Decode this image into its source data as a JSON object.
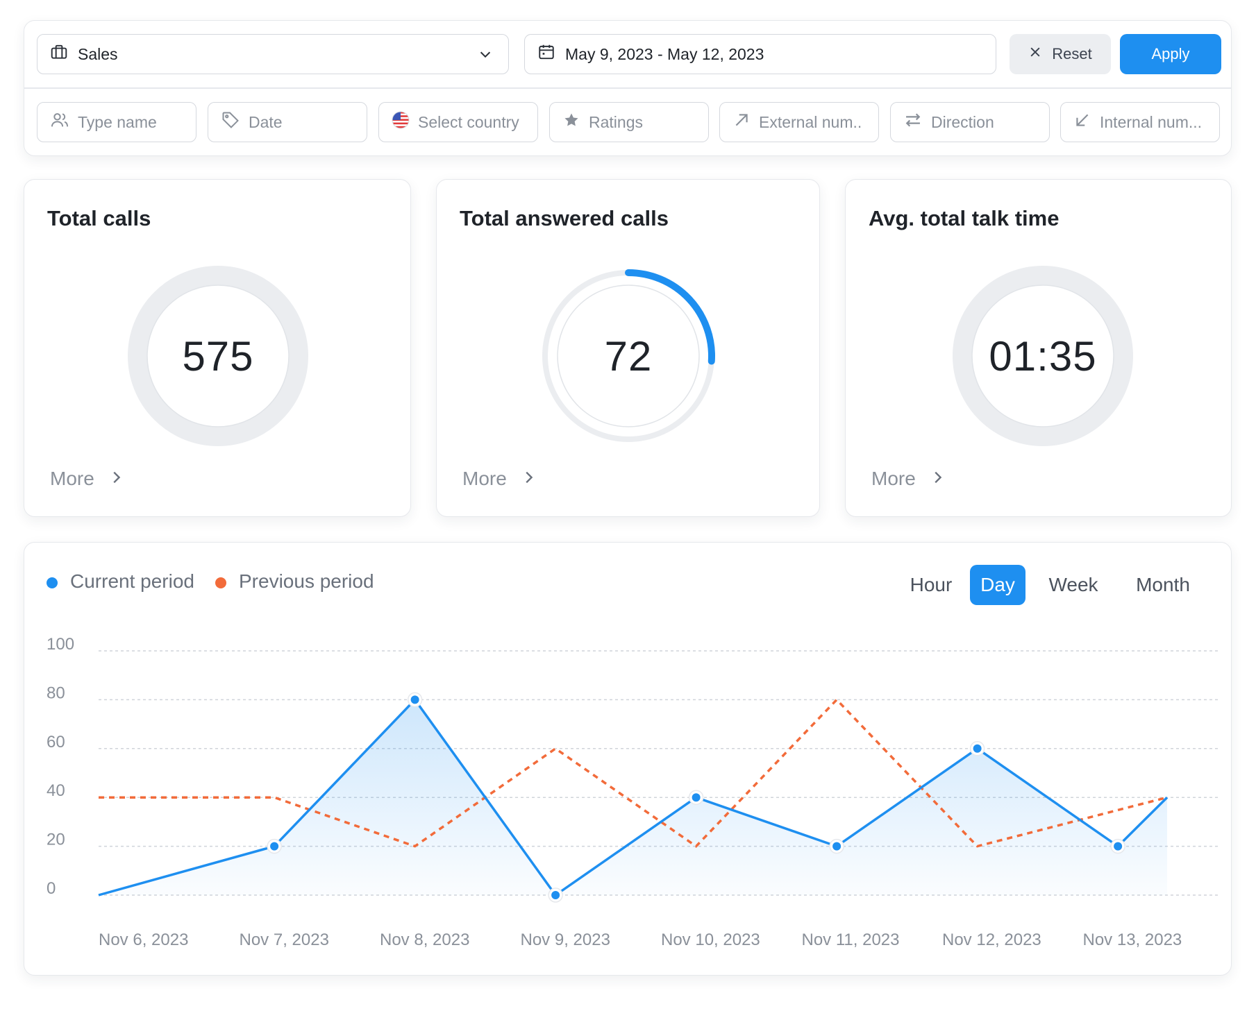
{
  "filters": {
    "department": {
      "value": "Sales",
      "icon": "briefcase-icon"
    },
    "date_range": {
      "value": "May 9, 2023 - May 12, 2023",
      "icon": "calendar-icon"
    },
    "reset_label": "Reset",
    "apply_label": "Apply",
    "chips": [
      {
        "placeholder": "Type name",
        "icon": "users-icon"
      },
      {
        "placeholder": "Date",
        "icon": "tag-icon"
      },
      {
        "placeholder": "Select country",
        "icon": "us-flag-icon"
      },
      {
        "placeholder": "Ratings",
        "icon": "star-icon"
      },
      {
        "placeholder": "External num..",
        "icon": "arrow-up-right-icon"
      },
      {
        "placeholder": "Direction",
        "icon": "swap-arrows-icon"
      },
      {
        "placeholder": "Internal num...",
        "icon": "arrow-down-left-icon"
      }
    ]
  },
  "kpis": [
    {
      "title": "Total calls",
      "value": "575",
      "progress": 0,
      "more_label": "More"
    },
    {
      "title": "Total answered calls",
      "value": "72",
      "progress": 0.26,
      "more_label": "More"
    },
    {
      "title": "Avg. total talk time",
      "value": "01:35",
      "progress": 0,
      "more_label": "More"
    }
  ],
  "chart_controls": {
    "legend": [
      {
        "label": "Current period",
        "color": "#1e8ff0"
      },
      {
        "label": "Previous period",
        "color": "#f26b3a"
      }
    ],
    "granularity": [
      "Hour",
      "Day",
      "Week",
      "Month"
    ],
    "active_granularity": "Day"
  },
  "chart_data": {
    "type": "line",
    "x": [
      "Nov 6, 2023",
      "",
      "Nov 7, 2023",
      "",
      "Nov 8, 2023",
      "",
      "Nov 9, 2023",
      "",
      "Nov 10, 2023",
      "",
      "Nov 11, 2023",
      "",
      "Nov 12, 2023",
      "",
      "Nov 13, 2023",
      ""
    ],
    "tick_labels": [
      "Nov 6, 2023",
      "Nov 7, 2023",
      "Nov 8, 2023",
      "Nov 9, 2023",
      "Nov 10, 2023",
      "Nov 11, 2023",
      "Nov 12, 2023",
      "Nov 13, 2023"
    ],
    "yticks": [
      0,
      20,
      40,
      60,
      80,
      100
    ],
    "ylim": [
      0,
      100
    ],
    "grid": true,
    "series": [
      {
        "name": "Current period",
        "color": "#1e8ff0",
        "style": "solid-area",
        "x": [
          0,
          1.25,
          2.25,
          3.25,
          4.25,
          5.25,
          6.25,
          7.25,
          7.6
        ],
        "values": [
          0,
          20,
          80,
          0,
          40,
          20,
          60,
          20,
          40
        ]
      },
      {
        "name": "Previous period",
        "color": "#f26b3a",
        "style": "dashed",
        "x": [
          0,
          1.25,
          2.25,
          3.25,
          4.25,
          5.25,
          6.25,
          7.6
        ],
        "values": [
          40,
          40,
          20,
          60,
          20,
          80,
          20,
          40
        ]
      }
    ],
    "markers_on": "Current period"
  }
}
